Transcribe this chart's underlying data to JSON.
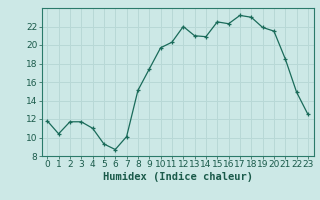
{
  "x": [
    0,
    1,
    2,
    3,
    4,
    5,
    6,
    7,
    8,
    9,
    10,
    11,
    12,
    13,
    14,
    15,
    16,
    17,
    18,
    19,
    20,
    21,
    22,
    23
  ],
  "y": [
    11.8,
    10.4,
    11.7,
    11.7,
    11.0,
    9.3,
    8.7,
    10.1,
    15.1,
    17.4,
    19.7,
    20.3,
    22.0,
    21.0,
    20.9,
    22.5,
    22.3,
    23.2,
    23.0,
    21.9,
    21.5,
    18.5,
    14.9,
    12.5
  ],
  "xlabel": "Humidex (Indice chaleur)",
  "ylim": [
    8,
    24
  ],
  "xlim": [
    -0.5,
    23.5
  ],
  "yticks": [
    8,
    10,
    12,
    14,
    16,
    18,
    20,
    22
  ],
  "xticks": [
    0,
    1,
    2,
    3,
    4,
    5,
    6,
    7,
    8,
    9,
    10,
    11,
    12,
    13,
    14,
    15,
    16,
    17,
    18,
    19,
    20,
    21,
    22,
    23
  ],
  "line_color": "#1a6b5a",
  "marker": "+",
  "bg_color": "#cce8e6",
  "grid_color": "#b8d8d6",
  "spine_color": "#2a7a6a",
  "tick_color": "#1a5a4a",
  "label_color": "#1a5a4a",
  "font_size": 6.5,
  "xlabel_fontsize": 7.5
}
